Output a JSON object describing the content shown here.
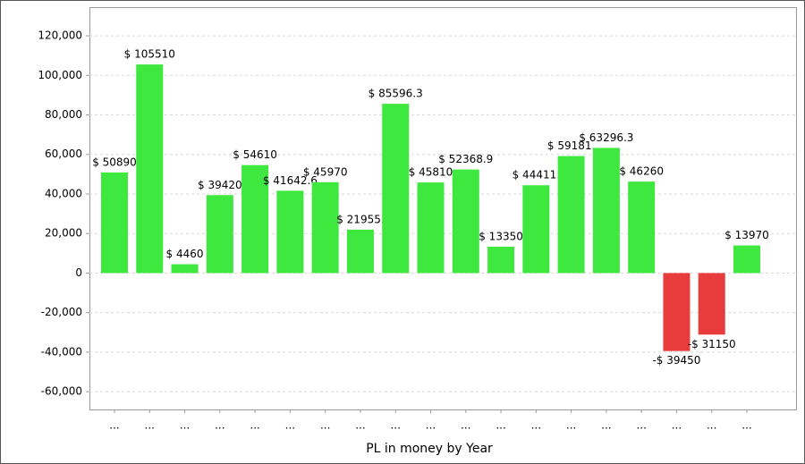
{
  "chart_data": {
    "type": "bar",
    "x_label": "PL in money by Year",
    "categories": [
      "...",
      "...",
      "...",
      "...",
      "...",
      "...",
      "...",
      "...",
      "...",
      "...",
      "...",
      "...",
      "...",
      "...",
      "...",
      "...",
      "...",
      "...",
      "..."
    ],
    "values": [
      50890,
      105510,
      4460,
      39420,
      54610,
      41642.6,
      45970,
      21955,
      85596.3,
      45810,
      52368.9,
      13350,
      44411,
      59181,
      63296.3,
      46260,
      -39450,
      -31150,
      13970
    ],
    "value_labels": [
      "$ 50890",
      "$ 105510",
      "$ 4460",
      "$ 39420",
      "$ 54610",
      "$ 41642.6",
      "$ 45970",
      "$ 21955.",
      "$ 85596.3",
      "$ 45810",
      "$ 52368.9",
      "$ 13350",
      "$ 44411.",
      "$ 59181.",
      "$ 63296.3",
      "$ 46260",
      "-$ 39450",
      "-$ 31150",
      "$ 13970"
    ],
    "color": "#3ee83e",
    "negative_color": "#e83c3c",
    "ylim": [
      -69000,
      134500
    ],
    "yticks": [
      {
        "value": -60000,
        "label": "-60,000"
      },
      {
        "value": -40000,
        "label": "-40,000"
      },
      {
        "value": -20000,
        "label": "-20,000"
      },
      0,
      {
        "value": 20000,
        "label": "20,000"
      },
      {
        "value": 40000,
        "label": "40,000"
      },
      {
        "value": 60000,
        "label": "60,000"
      },
      {
        "value": 80000,
        "label": "80,000"
      },
      {
        "value": 100000,
        "label": "100,000"
      },
      {
        "value": 120000,
        "label": "120,000"
      }
    ],
    "grid": true
  }
}
